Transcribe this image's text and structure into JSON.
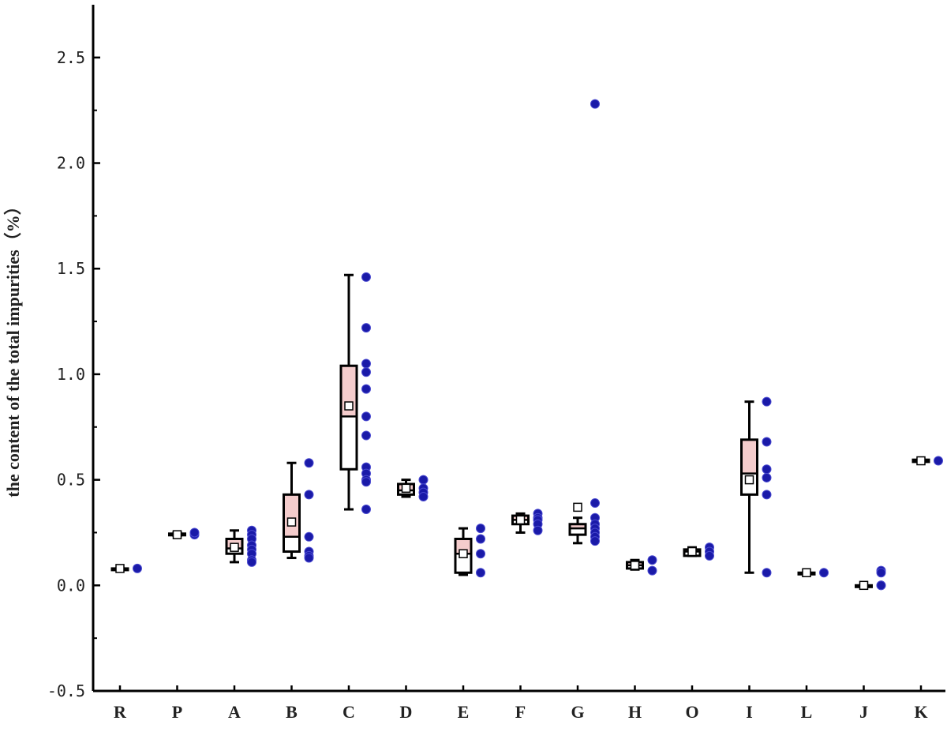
{
  "chart_data": {
    "type": "box",
    "ylabel": "the content of the total impurities（%）",
    "xlabel": "",
    "ylim": [
      -0.5,
      2.75
    ],
    "yticks": [
      "-0.5",
      "0.0",
      "0.5",
      "1.0",
      "1.5",
      "2.0",
      "2.5"
    ],
    "grid": false,
    "colors": {
      "box_fill": "#f4cccc",
      "points": "#1a1aa8",
      "lines": "#000000"
    },
    "categories": [
      "R",
      "P",
      "A",
      "B",
      "C",
      "D",
      "E",
      "F",
      "G",
      "H",
      "O",
      "I",
      "L",
      "J",
      "K"
    ],
    "boxes": [
      {
        "category": "R",
        "q1": 0.08,
        "median": 0.08,
        "q3": 0.08,
        "whisker_low": 0.08,
        "whisker_high": 0.08,
        "mean": 0.08,
        "points": [
          0.08
        ]
      },
      {
        "category": "P",
        "q1": 0.24,
        "median": 0.24,
        "q3": 0.245,
        "whisker_low": 0.235,
        "whisker_high": 0.25,
        "mean": 0.24,
        "points": [
          0.24,
          0.25
        ]
      },
      {
        "category": "A",
        "q1": 0.15,
        "median": 0.175,
        "q3": 0.22,
        "whisker_low": 0.11,
        "whisker_high": 0.26,
        "mean": 0.18,
        "points": [
          0.26,
          0.24,
          0.22,
          0.19,
          0.17,
          0.15,
          0.12,
          0.11
        ]
      },
      {
        "category": "B",
        "q1": 0.16,
        "median": 0.23,
        "q3": 0.43,
        "whisker_low": 0.13,
        "whisker_high": 0.58,
        "mean": 0.3,
        "points": [
          0.58,
          0.43,
          0.23,
          0.16,
          0.14,
          0.13
        ]
      },
      {
        "category": "C",
        "q1": 0.55,
        "median": 0.8,
        "q3": 1.04,
        "whisker_low": 0.36,
        "whisker_high": 1.47,
        "mean": 0.85,
        "points": [
          1.46,
          1.22,
          1.05,
          1.01,
          0.93,
          0.8,
          0.71,
          0.56,
          0.53,
          0.5,
          0.49,
          0.36
        ]
      },
      {
        "category": "D",
        "q1": 0.43,
        "median": 0.45,
        "q3": 0.48,
        "whisker_low": 0.42,
        "whisker_high": 0.5,
        "mean": 0.46,
        "points": [
          0.5,
          0.46,
          0.44,
          0.42
        ]
      },
      {
        "category": "E",
        "q1": 0.06,
        "median": 0.15,
        "q3": 0.22,
        "whisker_low": 0.05,
        "whisker_high": 0.27,
        "mean": 0.15,
        "points": [
          0.27,
          0.22,
          0.15,
          0.06
        ]
      },
      {
        "category": "F",
        "q1": 0.29,
        "median": 0.31,
        "q3": 0.33,
        "whisker_low": 0.25,
        "whisker_high": 0.34,
        "mean": 0.31,
        "points": [
          0.34,
          0.32,
          0.31,
          0.29,
          0.26
        ]
      },
      {
        "category": "G",
        "q1": 0.24,
        "median": 0.27,
        "q3": 0.29,
        "whisker_low": 0.2,
        "whisker_high": 0.32,
        "mean": 0.37,
        "points": [
          2.28,
          0.39,
          0.32,
          0.29,
          0.27,
          0.25,
          0.23,
          0.21
        ]
      },
      {
        "category": "H",
        "q1": 0.08,
        "median": 0.095,
        "q3": 0.11,
        "whisker_low": 0.075,
        "whisker_high": 0.12,
        "mean": 0.095,
        "points": [
          0.12,
          0.07
        ]
      },
      {
        "category": "O",
        "q1": 0.14,
        "median": 0.16,
        "q3": 0.17,
        "whisker_low": 0.14,
        "whisker_high": 0.18,
        "mean": 0.16,
        "points": [
          0.18,
          0.16,
          0.14
        ]
      },
      {
        "category": "I",
        "q1": 0.43,
        "median": 0.53,
        "q3": 0.69,
        "whisker_low": 0.06,
        "whisker_high": 0.87,
        "mean": 0.5,
        "points": [
          0.87,
          0.68,
          0.55,
          0.51,
          0.43,
          0.06
        ]
      },
      {
        "category": "L",
        "q1": 0.06,
        "median": 0.06,
        "q3": 0.06,
        "whisker_low": 0.06,
        "whisker_high": 0.06,
        "mean": 0.06,
        "points": [
          0.06
        ]
      },
      {
        "category": "J",
        "q1": 0.0,
        "median": 0.0,
        "q3": 0.0,
        "whisker_low": 0.0,
        "whisker_high": 0.0,
        "mean": 0.0,
        "points": [
          0.07,
          0.06,
          0.0,
          0.0
        ]
      },
      {
        "category": "K",
        "q1": 0.585,
        "median": 0.59,
        "q3": 0.595,
        "whisker_low": 0.585,
        "whisker_high": 0.595,
        "mean": 0.59,
        "points": [
          0.59
        ]
      }
    ]
  }
}
